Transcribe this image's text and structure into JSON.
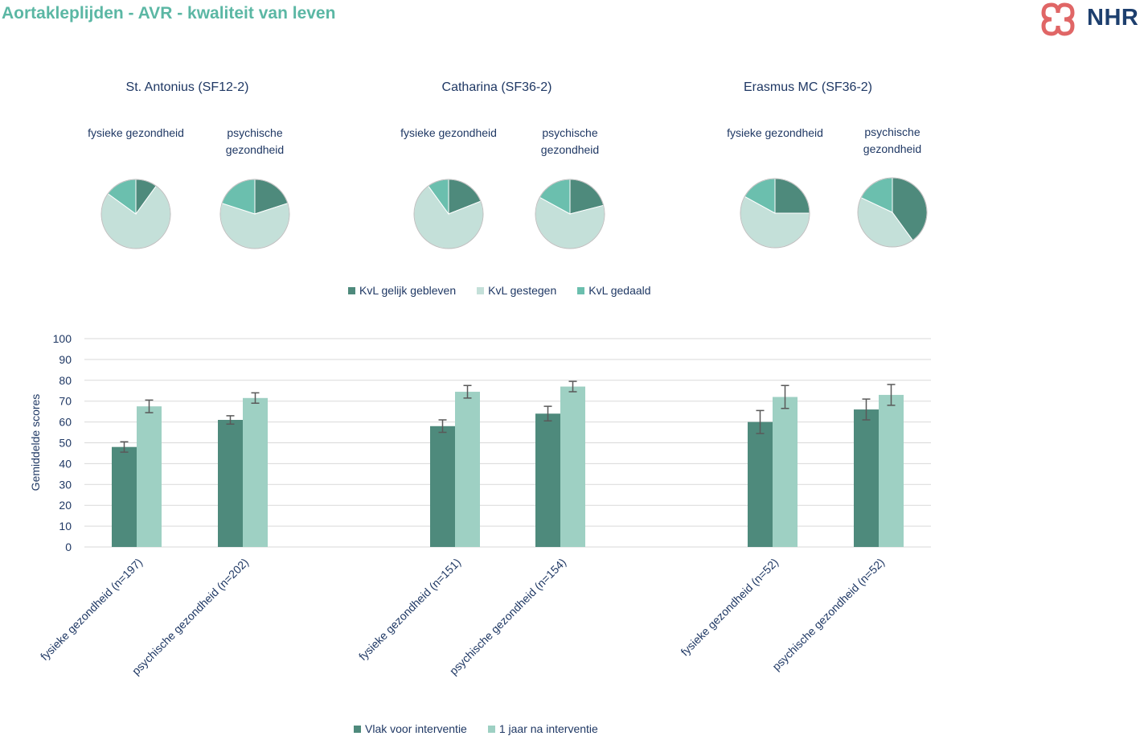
{
  "header": {
    "title": "Aortakleplijden - AVR - kwaliteit van leven",
    "logo_text": "NHR",
    "logo_icon": "nhr-cross-logo-icon"
  },
  "colors": {
    "title": "#5bb7a4",
    "kvl_gelijk": "#4e8a7c",
    "kvl_gestegen": "#c4e0d9",
    "kvl_gedaald": "#6bbfae",
    "bar_voor": "#4e8a7c",
    "bar_na": "#9ed0c3",
    "text": "#1f3864"
  },
  "pie_section": {
    "hospitals": [
      {
        "name": "St. Antonius (SF12-2)",
        "pies": [
          {
            "label": "fysieke gezondheid",
            "gelijk": 0.1,
            "gestegen": 0.75,
            "gedaald": 0.15
          },
          {
            "label": "psychische gezondheid",
            "gelijk": 0.2,
            "gestegen": 0.6,
            "gedaald": 0.2
          }
        ]
      },
      {
        "name": "Catharina (SF36-2)",
        "pies": [
          {
            "label": "fysieke gezondheid",
            "gelijk": 0.19,
            "gestegen": 0.71,
            "gedaald": 0.1
          },
          {
            "label": "psychische gezondheid",
            "gelijk": 0.21,
            "gestegen": 0.62,
            "gedaald": 0.17
          }
        ]
      },
      {
        "name": "Erasmus MC (SF36-2)",
        "pies": [
          {
            "label": "fysieke gezondheid",
            "gelijk": 0.25,
            "gestegen": 0.58,
            "gedaald": 0.17
          },
          {
            "label": "psychische gezondheid",
            "gelijk": 0.4,
            "gestegen": 0.42,
            "gedaald": 0.18
          }
        ]
      }
    ],
    "legend": [
      "KvL gelijk gebleven",
      "KvL gestegen",
      "KvL gedaald"
    ]
  },
  "chart_data": {
    "type": "bar",
    "ylabel": "Gemiddelde scores",
    "ylim": [
      0,
      100
    ],
    "yticks": [
      0,
      10,
      20,
      30,
      40,
      50,
      60,
      70,
      80,
      90,
      100
    ],
    "grid": true,
    "categories": [
      "fysieke gezondheid (n=197)",
      "psychische gezondheid (n=202)",
      "fysieke gezondheid (n=151)",
      "psychische gezondheid (n=154)",
      "fysieke gezondheid (n=52)",
      "psychische gezondheid (n=52)"
    ],
    "series": [
      {
        "name": "Vlak voor interventie",
        "values": [
          48,
          61,
          58,
          64,
          60,
          66
        ],
        "error": [
          2.5,
          2,
          3,
          3.5,
          5.5,
          5
        ]
      },
      {
        "name": "1 jaar na interventie",
        "values": [
          67.5,
          71.5,
          74.5,
          77,
          72,
          73
        ],
        "error": [
          3,
          2.5,
          3,
          2.5,
          5.5,
          5
        ]
      }
    ],
    "legend_position": "bottom"
  }
}
